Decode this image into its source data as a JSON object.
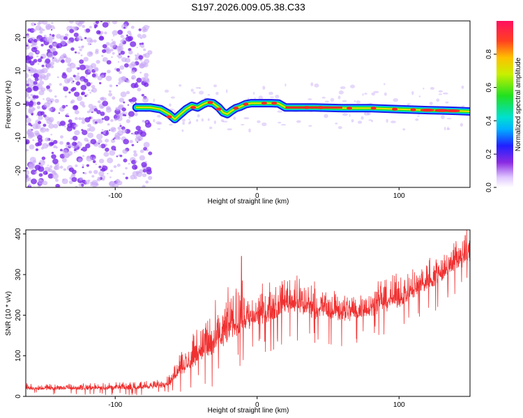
{
  "title": "S197.2026.009.05.38.C33",
  "colors": {
    "snr_line": "#f03030",
    "scatter_noise": "#7a2be8",
    "scatter_light": "#c8a8f5",
    "track_core": "#ff2a2a",
    "track_mid": "#20e020",
    "track_edge": "#1a1ae8"
  },
  "chart_data": [
    {
      "name": "spectrogram",
      "type": "heatmap",
      "xlabel": "Height of straight line (km)",
      "ylabel": "Frequency (Hz)",
      "xlim": [
        -163,
        150
      ],
      "ylim": [
        -25,
        25
      ],
      "xticks": [
        -100,
        0,
        100
      ],
      "xtick_labels": [
        "-100",
        "0",
        "100"
      ],
      "yticks": [
        -20,
        -10,
        0,
        10,
        20
      ],
      "ytick_labels": [
        "-20",
        "-10",
        "0",
        "10",
        "20"
      ],
      "noise_region_x": [
        -163,
        -75
      ],
      "track": {
        "x": [
          -85,
          -75,
          -68,
          -62,
          -58,
          -54,
          -50,
          -46,
          -42,
          -38,
          -35,
          -31,
          -27,
          -24,
          -21,
          -18,
          -15,
          -12,
          -8,
          -4,
          0,
          5,
          10,
          15,
          20,
          40,
          60,
          80,
          100,
          120,
          140,
          150
        ],
        "y": [
          -1,
          -1,
          -1.5,
          -3,
          -4.5,
          -3,
          -1.5,
          -0.5,
          -1,
          0,
          0.5,
          0.3,
          -1,
          -2.5,
          -3,
          -2,
          -1.2,
          -0.8,
          0,
          0.3,
          0.3,
          0.3,
          0.3,
          0.2,
          -1,
          -1,
          -1.2,
          -1.2,
          -1.5,
          -1.8,
          -2,
          -2.2
        ]
      },
      "colorbar": {
        "label": "Normalized spectral amplitude",
        "range": [
          0,
          1
        ],
        "ticks": [
          0.0,
          0.2,
          0.4,
          0.6,
          0.8
        ],
        "tick_labels": [
          "0.0",
          "0.2",
          "0.4",
          "0.6",
          "0.8"
        ]
      }
    },
    {
      "name": "snr",
      "type": "line",
      "xlabel": "Height of straight line (km)",
      "ylabel": "SNR (10 * v/v)",
      "xlim": [
        -163,
        150
      ],
      "ylim": [
        0,
        410
      ],
      "xticks": [
        -100,
        0,
        100
      ],
      "xtick_labels": [
        "-100",
        "0",
        "100"
      ],
      "yticks": [
        0,
        100,
        200,
        300,
        400
      ],
      "ytick_labels": [
        "0",
        "100",
        "200",
        "300",
        "400"
      ],
      "envelope": {
        "x": [
          -163,
          -120,
          -90,
          -70,
          -60,
          -55,
          -50,
          -45,
          -40,
          -35,
          -30,
          -25,
          -20,
          -15,
          -10,
          -5,
          0,
          10,
          20,
          30,
          40,
          50,
          60,
          70,
          80,
          90,
          100,
          110,
          120,
          130,
          140,
          150
        ],
        "lo": [
          10,
          10,
          10,
          12,
          15,
          30,
          40,
          35,
          60,
          40,
          60,
          80,
          90,
          100,
          110,
          130,
          140,
          150,
          170,
          170,
          160,
          160,
          150,
          160,
          170,
          180,
          190,
          210,
          230,
          250,
          280,
          300
        ],
        "hi": [
          30,
          32,
          35,
          40,
          60,
          120,
          110,
          160,
          170,
          200,
          210,
          220,
          260,
          270,
          280,
          250,
          260,
          280,
          300,
          300,
          280,
          270,
          270,
          260,
          270,
          290,
          300,
          310,
          340,
          360,
          390,
          410
        ]
      },
      "spike": {
        "x": -11,
        "y": 345
      }
    }
  ]
}
